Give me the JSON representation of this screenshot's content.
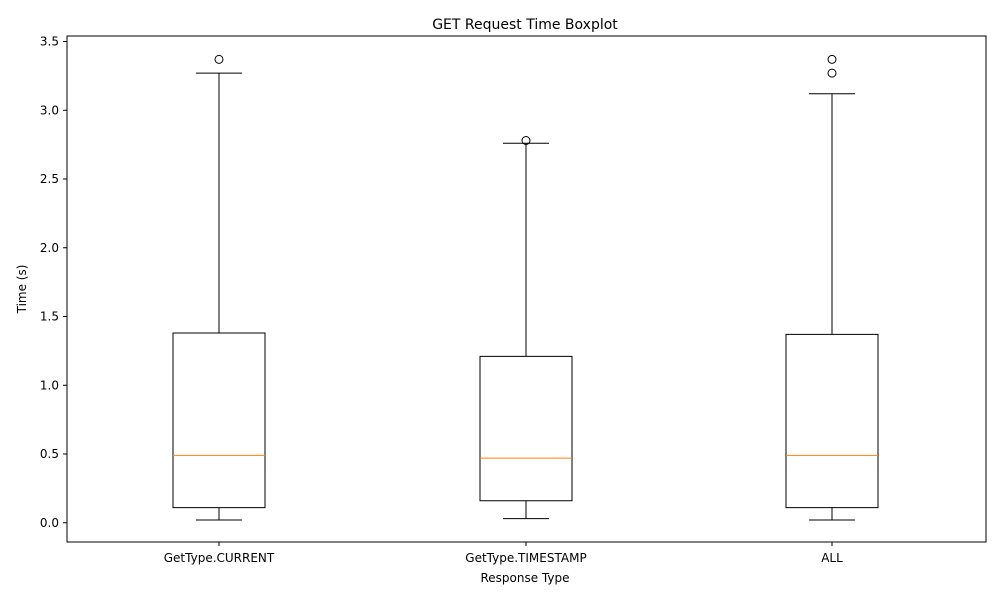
{
  "chart_data": {
    "type": "boxplot",
    "title": "GET Request Time Boxplot",
    "xlabel": "Response Type",
    "ylabel": "Time (s)",
    "ylim": [
      -0.14,
      3.54
    ],
    "yticks": [
      "0.0",
      "0.5",
      "1.0",
      "1.5",
      "2.0",
      "2.5",
      "3.0",
      "3.5"
    ],
    "grid": false,
    "categories": [
      "GetType.CURRENT",
      "GetType.TIMESTAMP",
      "ALL"
    ],
    "boxes": [
      {
        "whisker_low": 0.02,
        "q1": 0.11,
        "median": 0.49,
        "q3": 1.38,
        "whisker_high": 3.27,
        "outliers": [
          3.37
        ]
      },
      {
        "whisker_low": 0.03,
        "q1": 0.16,
        "median": 0.47,
        "q3": 1.21,
        "whisker_high": 2.76,
        "outliers": [
          2.78
        ]
      },
      {
        "whisker_low": 0.02,
        "q1": 0.11,
        "median": 0.49,
        "q3": 1.37,
        "whisker_high": 3.12,
        "outliers": [
          3.27,
          3.37
        ]
      }
    ],
    "colors": {
      "box": "#000000",
      "median": "#ff7f0e",
      "outlier": "#000000"
    }
  }
}
